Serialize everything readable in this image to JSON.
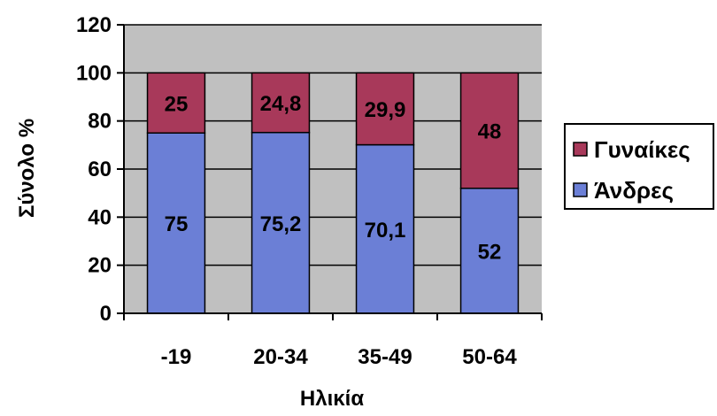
{
  "chart_data": {
    "type": "bar",
    "stacked": true,
    "categories": [
      "-19",
      "20-34",
      "35-49",
      "50-64"
    ],
    "series": [
      {
        "name": "Άνδρες",
        "values": [
          75,
          75.2,
          70.1,
          52
        ],
        "labels": [
          "75",
          "75,2",
          "70,1",
          "52"
        ],
        "color": "#6b7fd6"
      },
      {
        "name": "Γυναίκες",
        "values": [
          25,
          24.8,
          29.9,
          48
        ],
        "labels": [
          "25",
          "24,8",
          "29,9",
          "48"
        ],
        "color": "#a8395a"
      }
    ],
    "xlabel": "Ηλικία",
    "ylabel": "Σύνολο %",
    "ylim": [
      0,
      120
    ],
    "yticks": [
      {
        "value": 0,
        "label": "0"
      },
      {
        "value": 20,
        "label": "20"
      },
      {
        "value": 40,
        "label": "40"
      },
      {
        "value": 60,
        "label": "60"
      },
      {
        "value": 80,
        "label": "80"
      },
      {
        "value": 100,
        "label": "100"
      },
      {
        "value": 120,
        "label": "120"
      }
    ],
    "grid": true,
    "plot_background": "#c0c0c0",
    "legend": {
      "position": "right",
      "entries": [
        {
          "label": "Γυναίκες",
          "color": "#a8395a"
        },
        {
          "label": "Άνδρες",
          "color": "#6b7fd6"
        }
      ]
    }
  }
}
